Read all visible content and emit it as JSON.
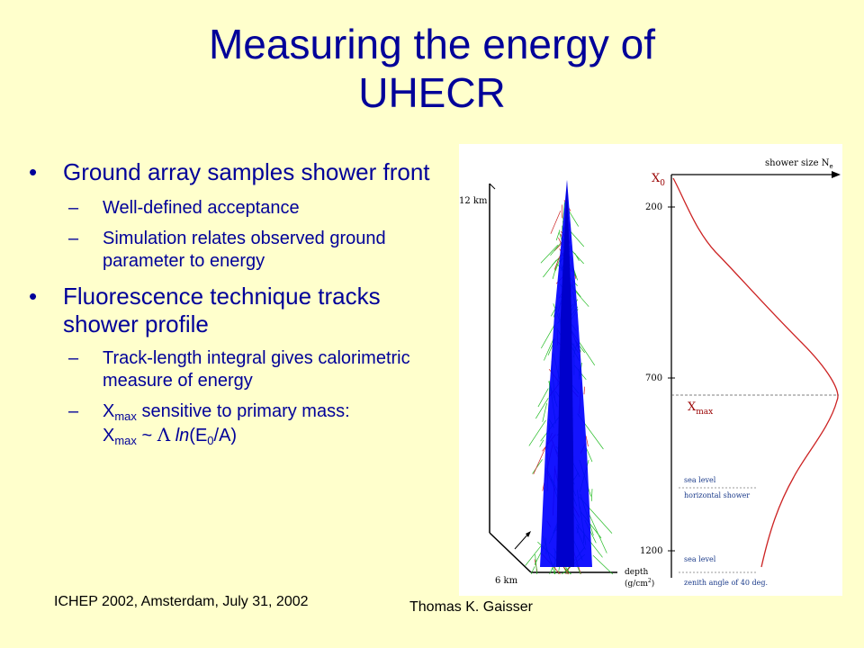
{
  "title": {
    "line1": "Measuring the energy of",
    "line2": "UHECR"
  },
  "bullets": [
    {
      "text": "Ground array samples shower front",
      "subs": [
        "Well-defined acceptance",
        "Simulation relates observed ground parameter to energy"
      ]
    },
    {
      "text": "Fluorescence technique tracks shower profile",
      "subs": [
        "Track-length integral gives calorimetric measure of energy"
      ],
      "xmax_line": {
        "x": "X",
        "max": "max",
        "a": " sensitive to primary mass:",
        "tilde": " ~ ",
        "lambda": "Λ",
        "ln": "ln",
        "e": "(E",
        "zero": "0",
        "tail": "/A)"
      }
    }
  ],
  "figure": {
    "shower_size": "shower size N",
    "shower_size_sub": "e",
    "x0": "X",
    "x0_sub": "0",
    "xmax": "X",
    "xmax_sub": "max",
    "depth_ticks": [
      "200",
      "700",
      "1200"
    ],
    "height_top": "12 km",
    "height_bottom": "6 km",
    "depth_label": "depth",
    "depth_unit": "(g/cm",
    "depth_unit_sup": "2",
    "depth_unit_close": ")",
    "sea_level": "sea level",
    "horizontal_shower": "horizontal shower",
    "sea_level_2": "sea level",
    "zenith_angle": "zenith angle of 40 deg.",
    "colors": {
      "profile": "#cc2222",
      "core": "#0000ff",
      "tracks_green": "#22bb22",
      "tracks_red": "#cc2222"
    }
  },
  "footer": {
    "left": "ICHEP 2002, Amsterdam, July 31, 2002",
    "right": "Thomas K. Gaisser"
  }
}
